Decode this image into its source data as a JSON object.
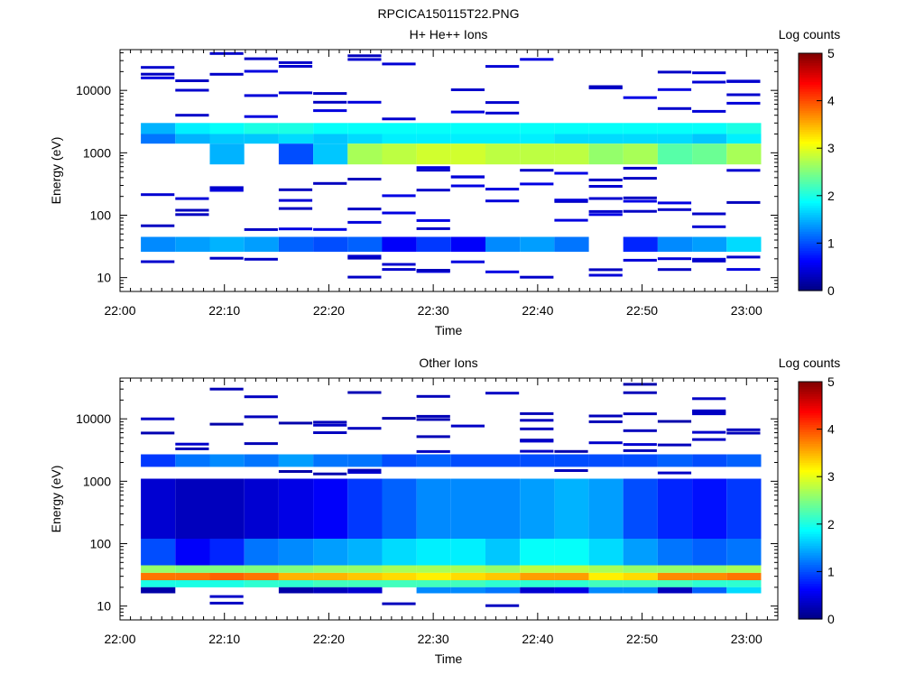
{
  "figure_title": "RPCICA150115T22.PNG",
  "chart_data": [
    {
      "type": "heatmap",
      "title": "H+ He++ Ions",
      "xlabel": "Time",
      "ylabel": "Energy (eV)",
      "x_ticks": [
        "22:00",
        "22:10",
        "22:20",
        "22:30",
        "22:40",
        "22:50",
        "23:00"
      ],
      "x_range": [
        "22:00",
        "23:03"
      ],
      "y_scale": "log",
      "y_ticks": [
        "10",
        "100",
        "1000",
        "10000"
      ],
      "ylim": [
        6,
        45000
      ],
      "colorbar": {
        "label": "Log counts",
        "ticks": [
          "0",
          "1",
          "2",
          "3",
          "4",
          "5"
        ],
        "range": [
          0,
          5
        ],
        "colormap": "jet"
      },
      "time_bins_start_min": [
        2,
        5.3,
        8.6,
        11.9,
        15.2,
        18.5,
        21.8,
        25.1,
        28.4,
        31.7,
        35,
        38.3,
        41.6,
        44.9,
        48.2,
        51.5,
        54.8,
        58.1
      ],
      "time_bin_width_min": 3.3,
      "bands": [
        {
          "e_min": 2000,
          "e_max": 3000,
          "levels": [
            1.5,
            1.8,
            1.9,
            2.0,
            2.0,
            1.9,
            1.9,
            1.9,
            1.9,
            1.9,
            1.9,
            1.9,
            1.9,
            1.9,
            1.9,
            1.9,
            1.9,
            2.0
          ]
        },
        {
          "e_min": 1400,
          "e_max": 2000,
          "levels": [
            1.2,
            1.5,
            1.6,
            1.6,
            1.7,
            1.6,
            1.7,
            1.8,
            1.8,
            1.8,
            1.8,
            1.8,
            1.7,
            1.7,
            1.7,
            1.7,
            1.6,
            1.8
          ]
        },
        {
          "e_min": 650,
          "e_max": 1400,
          "levels": [
            null,
            null,
            1.5,
            null,
            1.0,
            1.6,
            2.7,
            2.8,
            2.9,
            2.9,
            2.8,
            2.8,
            2.8,
            2.6,
            2.7,
            2.3,
            2.4,
            2.7
          ]
        },
        {
          "e_min": 26,
          "e_max": 45,
          "levels": [
            1.3,
            1.4,
            1.5,
            1.4,
            1.1,
            1.0,
            1.1,
            0.6,
            0.9,
            0.6,
            1.3,
            1.4,
            1.2,
            null,
            0.8,
            1.3,
            1.4,
            1.7
          ]
        }
      ],
      "sparse_level": 0.3
    },
    {
      "type": "heatmap",
      "title": "Other Ions",
      "xlabel": "Time",
      "ylabel": "Energy (eV)",
      "x_ticks": [
        "22:00",
        "22:10",
        "22:20",
        "22:30",
        "22:40",
        "22:50",
        "23:00"
      ],
      "x_range": [
        "22:00",
        "23:03"
      ],
      "y_scale": "log",
      "y_ticks": [
        "10",
        "100",
        "1000",
        "10000"
      ],
      "ylim": [
        6,
        45000
      ],
      "colorbar": {
        "label": "Log counts",
        "ticks": [
          "0",
          "1",
          "2",
          "3",
          "4",
          "5"
        ],
        "range": [
          0,
          5
        ],
        "colormap": "jet"
      },
      "time_bins_start_min": [
        2,
        5.3,
        8.6,
        11.9,
        15.2,
        18.5,
        21.8,
        25.1,
        28.4,
        31.7,
        35,
        38.3,
        41.6,
        44.9,
        48.2,
        51.5,
        54.8,
        58.1
      ],
      "time_bin_width_min": 3.3,
      "bands": [
        {
          "e_min": 1700,
          "e_max": 2700,
          "levels": [
            0.9,
            1.2,
            1.3,
            1.2,
            1.4,
            1.2,
            1.2,
            1.0,
            1.1,
            1.0,
            1.0,
            1.0,
            1.0,
            1.0,
            1.0,
            1.1,
            1.0,
            1.1
          ]
        },
        {
          "e_min": 120,
          "e_max": 1100,
          "levels": [
            0.4,
            0.3,
            0.3,
            0.4,
            0.5,
            0.6,
            0.9,
            1.1,
            1.3,
            1.3,
            1.3,
            1.4,
            1.5,
            1.4,
            1.0,
            0.8,
            0.7,
            0.9
          ]
        },
        {
          "e_min": 45,
          "e_max": 120,
          "levels": [
            1.0,
            0.6,
            0.8,
            1.2,
            1.3,
            1.4,
            1.5,
            1.7,
            1.8,
            1.8,
            1.6,
            1.9,
            1.9,
            1.7,
            1.4,
            1.2,
            1.1,
            1.2
          ]
        },
        {
          "e_min": 34,
          "e_max": 45,
          "levels": [
            2.6,
            2.5,
            2.5,
            2.5,
            2.5,
            2.6,
            2.6,
            2.7,
            2.7,
            2.7,
            2.6,
            2.8,
            2.8,
            2.7,
            2.6,
            2.6,
            2.6,
            2.7
          ]
        },
        {
          "e_min": 26,
          "e_max": 34,
          "levels": [
            3.8,
            3.8,
            3.9,
            3.8,
            3.5,
            3.5,
            3.4,
            3.3,
            3.2,
            3.3,
            3.4,
            3.6,
            3.6,
            3.2,
            3.3,
            3.7,
            3.7,
            3.8
          ]
        },
        {
          "e_min": 20,
          "e_max": 26,
          "levels": [
            2.0,
            2.0,
            2.0,
            2.1,
            2.1,
            2.2,
            2.2,
            2.2,
            2.2,
            2.2,
            2.1,
            2.1,
            2.1,
            2.2,
            2.2,
            2.2,
            2.1,
            2.1
          ]
        },
        {
          "e_min": 16,
          "e_max": 20,
          "levels": [
            0.2,
            null,
            null,
            null,
            0.2,
            0.3,
            0.4,
            null,
            1.3,
            1.3,
            1.2,
            0.4,
            0.5,
            1.3,
            1.3,
            0.3,
            1.1,
            1.7
          ]
        }
      ],
      "sparse_level": 0.2
    }
  ]
}
